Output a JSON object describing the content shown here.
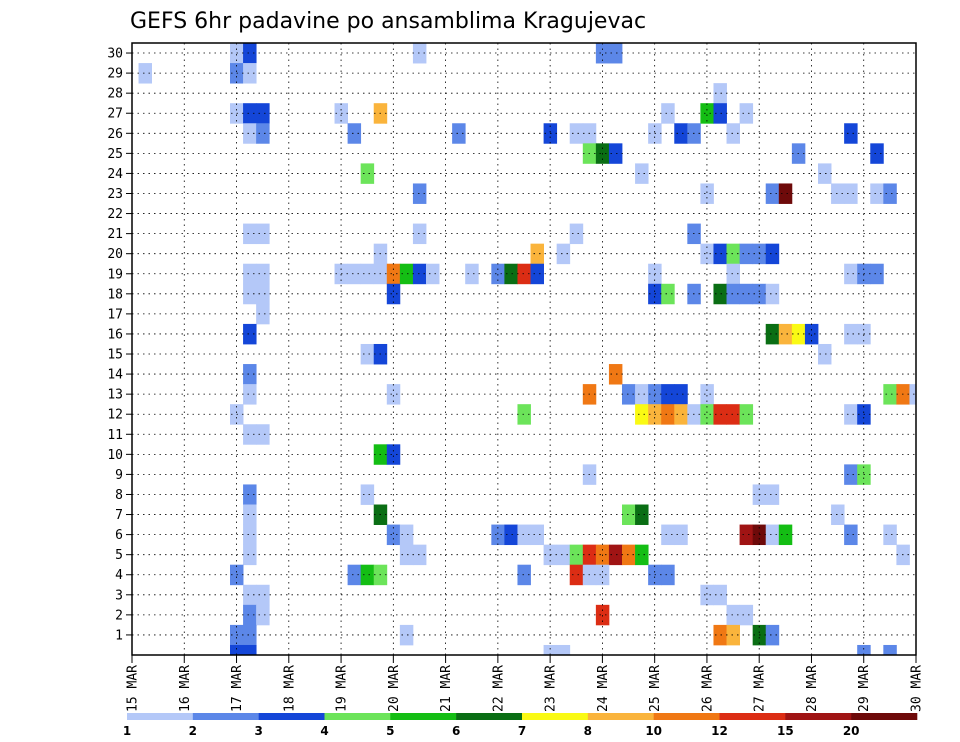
{
  "chart_data": {
    "type": "heatmap",
    "title": "GEFS 6hr padavine po ansamblima Kragujevac",
    "x_tick_labels": [
      "15 MAR",
      "16 MAR",
      "17 MAR",
      "18 MAR",
      "19 MAR",
      "20 MAR",
      "21 MAR",
      "22 MAR",
      "23 MAR",
      "24 MAR",
      "25 MAR",
      "26 MAR",
      "27 MAR",
      "28 MAR",
      "29 MAR",
      "30 MAR"
    ],
    "y_tick_labels": [
      "1",
      "2",
      "3",
      "4",
      "5",
      "6",
      "7",
      "8",
      "9",
      "10",
      "11",
      "12",
      "13",
      "14",
      "15",
      "16",
      "17",
      "18",
      "19",
      "20",
      "21",
      "22",
      "23",
      "24",
      "25",
      "26",
      "27",
      "28",
      "29",
      "30"
    ],
    "x_range_steps": [
      0,
      60
    ],
    "y_range": [
      0,
      30
    ],
    "grid": true,
    "colorbar": {
      "labels": [
        "1",
        "2",
        "3",
        "4",
        "5",
        "6",
        "7",
        "8",
        "10",
        "12",
        "15",
        "20"
      ],
      "colors": [
        "#b4c8f8",
        "#5c87e8",
        "#1446d8",
        "#6ce45a",
        "#14be14",
        "#0a6e14",
        "#fafa14",
        "#fab43c",
        "#f07814",
        "#dc2d14",
        "#a01414",
        "#6e0a0a"
      ]
    },
    "cells": [
      [
        8,
        30,
        1
      ],
      [
        9,
        30,
        3
      ],
      [
        22,
        30,
        1
      ],
      [
        36,
        30,
        2
      ],
      [
        37,
        30,
        2
      ],
      [
        1,
        29,
        1
      ],
      [
        8,
        29,
        2
      ],
      [
        9,
        29,
        1
      ],
      [
        45,
        28,
        1
      ],
      [
        8,
        27,
        1
      ],
      [
        9,
        27,
        3
      ],
      [
        10,
        27,
        3
      ],
      [
        16,
        27,
        1
      ],
      [
        19,
        27,
        8
      ],
      [
        41,
        27,
        1
      ],
      [
        44,
        27,
        5
      ],
      [
        45,
        27,
        3
      ],
      [
        47,
        27,
        1
      ],
      [
        9,
        26,
        1
      ],
      [
        10,
        26,
        2
      ],
      [
        17,
        26,
        2
      ],
      [
        25,
        26,
        2
      ],
      [
        32,
        26,
        3
      ],
      [
        34,
        26,
        1
      ],
      [
        35,
        26,
        1
      ],
      [
        40,
        26,
        1
      ],
      [
        42,
        26,
        3
      ],
      [
        43,
        26,
        2
      ],
      [
        46,
        26,
        1
      ],
      [
        55,
        26,
        3
      ],
      [
        35,
        25,
        4
      ],
      [
        36,
        25,
        6
      ],
      [
        37,
        25,
        3
      ],
      [
        51,
        25,
        2
      ],
      [
        57,
        25,
        3
      ],
      [
        18,
        24,
        4
      ],
      [
        39,
        24,
        1
      ],
      [
        53,
        24,
        1
      ],
      [
        22,
        23,
        2
      ],
      [
        44,
        23,
        1
      ],
      [
        49,
        23,
        2
      ],
      [
        50,
        23,
        12
      ],
      [
        54,
        23,
        1
      ],
      [
        55,
        23,
        1
      ],
      [
        57,
        23,
        1
      ],
      [
        58,
        23,
        2
      ],
      [
        9,
        21,
        1
      ],
      [
        10,
        21,
        1
      ],
      [
        22,
        21,
        1
      ],
      [
        34,
        21,
        1
      ],
      [
        43,
        21,
        2
      ],
      [
        19,
        20,
        1
      ],
      [
        31,
        20,
        8
      ],
      [
        33,
        20,
        1
      ],
      [
        44,
        20,
        1
      ],
      [
        45,
        20,
        3
      ],
      [
        46,
        20,
        4
      ],
      [
        47,
        20,
        2
      ],
      [
        48,
        20,
        2
      ],
      [
        49,
        20,
        3
      ],
      [
        9,
        19,
        1
      ],
      [
        10,
        19,
        1
      ],
      [
        16,
        19,
        1
      ],
      [
        17,
        19,
        1
      ],
      [
        18,
        19,
        1
      ],
      [
        19,
        19,
        1
      ],
      [
        20,
        19,
        9
      ],
      [
        21,
        19,
        5
      ],
      [
        22,
        19,
        3
      ],
      [
        23,
        19,
        1
      ],
      [
        26,
        19,
        1
      ],
      [
        28,
        19,
        2
      ],
      [
        29,
        19,
        6
      ],
      [
        30,
        19,
        10
      ],
      [
        31,
        19,
        3
      ],
      [
        40,
        19,
        1
      ],
      [
        46,
        19,
        1
      ],
      [
        55,
        19,
        1
      ],
      [
        56,
        19,
        2
      ],
      [
        57,
        19,
        2
      ],
      [
        9,
        18,
        1
      ],
      [
        10,
        18,
        1
      ],
      [
        20,
        18,
        3
      ],
      [
        40,
        18,
        3
      ],
      [
        41,
        18,
        4
      ],
      [
        43,
        18,
        2
      ],
      [
        45,
        18,
        6
      ],
      [
        46,
        18,
        2
      ],
      [
        47,
        18,
        2
      ],
      [
        48,
        18,
        2
      ],
      [
        49,
        18,
        1
      ],
      [
        10,
        17,
        1
      ],
      [
        9,
        16,
        3
      ],
      [
        49,
        16,
        6
      ],
      [
        50,
        16,
        8
      ],
      [
        51,
        16,
        7
      ],
      [
        52,
        16,
        3
      ],
      [
        55,
        16,
        1
      ],
      [
        56,
        16,
        1
      ],
      [
        53,
        15,
        1
      ],
      [
        18,
        15,
        1
      ],
      [
        19,
        15,
        3
      ],
      [
        9,
        14,
        2
      ],
      [
        37,
        14,
        9
      ],
      [
        9,
        13,
        1
      ],
      [
        20,
        13,
        1
      ],
      [
        35,
        13,
        9
      ],
      [
        38,
        13,
        2
      ],
      [
        39,
        13,
        1
      ],
      [
        40,
        13,
        2
      ],
      [
        41,
        13,
        3
      ],
      [
        42,
        13,
        3
      ],
      [
        44,
        13,
        1
      ],
      [
        58,
        13,
        4
      ],
      [
        59,
        13,
        9
      ],
      [
        60,
        13,
        1
      ],
      [
        8,
        12,
        1
      ],
      [
        30,
        12,
        4
      ],
      [
        39,
        12,
        7
      ],
      [
        40,
        12,
        8
      ],
      [
        41,
        12,
        9
      ],
      [
        42,
        12,
        8
      ],
      [
        43,
        12,
        1
      ],
      [
        44,
        12,
        4
      ],
      [
        45,
        12,
        10
      ],
      [
        46,
        12,
        10
      ],
      [
        47,
        12,
        4
      ],
      [
        55,
        12,
        1
      ],
      [
        56,
        12,
        3
      ],
      [
        9,
        11,
        1
      ],
      [
        10,
        11,
        1
      ],
      [
        19,
        10,
        5
      ],
      [
        20,
        10,
        3
      ],
      [
        35,
        9,
        1
      ],
      [
        55,
        9,
        2
      ],
      [
        56,
        9,
        4
      ],
      [
        9,
        8,
        2
      ],
      [
        18,
        8,
        1
      ],
      [
        48,
        8,
        1
      ],
      [
        49,
        8,
        1
      ],
      [
        9,
        7,
        1
      ],
      [
        19,
        7,
        6
      ],
      [
        38,
        7,
        4
      ],
      [
        39,
        7,
        6
      ],
      [
        54,
        7,
        1
      ],
      [
        9,
        6,
        1
      ],
      [
        20,
        6,
        2
      ],
      [
        21,
        6,
        1
      ],
      [
        28,
        6,
        2
      ],
      [
        29,
        6,
        3
      ],
      [
        30,
        6,
        1
      ],
      [
        31,
        6,
        1
      ],
      [
        41,
        6,
        1
      ],
      [
        42,
        6,
        1
      ],
      [
        47,
        6,
        11
      ],
      [
        48,
        6,
        12
      ],
      [
        49,
        6,
        1
      ],
      [
        50,
        6,
        5
      ],
      [
        55,
        6,
        2
      ],
      [
        58,
        6,
        1
      ],
      [
        9,
        5,
        1
      ],
      [
        21,
        5,
        1
      ],
      [
        22,
        5,
        1
      ],
      [
        32,
        5,
        1
      ],
      [
        33,
        5,
        1
      ],
      [
        34,
        5,
        4
      ],
      [
        35,
        5,
        10
      ],
      [
        36,
        5,
        9
      ],
      [
        37,
        5,
        11
      ],
      [
        38,
        5,
        9
      ],
      [
        39,
        5,
        5
      ],
      [
        59,
        5,
        1
      ],
      [
        8,
        4,
        2
      ],
      [
        17,
        4,
        2
      ],
      [
        18,
        4,
        5
      ],
      [
        19,
        4,
        4
      ],
      [
        30,
        4,
        2
      ],
      [
        34,
        4,
        10
      ],
      [
        35,
        4,
        1
      ],
      [
        36,
        4,
        1
      ],
      [
        40,
        4,
        2
      ],
      [
        41,
        4,
        2
      ],
      [
        9,
        3,
        1
      ],
      [
        10,
        3,
        1
      ],
      [
        44,
        3,
        1
      ],
      [
        45,
        3,
        1
      ],
      [
        9,
        2,
        2
      ],
      [
        10,
        2,
        1
      ],
      [
        36,
        2,
        10
      ],
      [
        46,
        2,
        1
      ],
      [
        47,
        2,
        1
      ],
      [
        8,
        1,
        2
      ],
      [
        9,
        1,
        2
      ],
      [
        21,
        1,
        1
      ],
      [
        45,
        1,
        9
      ],
      [
        46,
        1,
        8
      ],
      [
        48,
        1,
        6
      ],
      [
        49,
        1,
        2
      ],
      [
        8,
        0,
        3
      ],
      [
        9,
        0,
        3
      ],
      [
        32,
        0,
        1
      ],
      [
        33,
        0,
        1
      ],
      [
        56,
        0,
        2
      ],
      [
        58,
        0,
        2
      ]
    ]
  }
}
